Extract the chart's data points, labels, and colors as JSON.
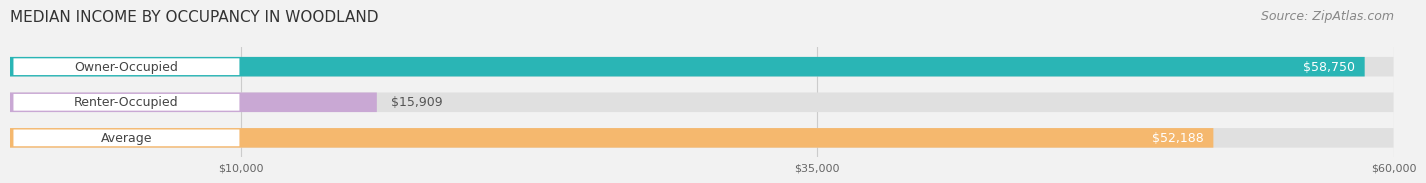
{
  "title": "MEDIAN INCOME BY OCCUPANCY IN WOODLAND",
  "source": "Source: ZipAtlas.com",
  "categories": [
    "Owner-Occupied",
    "Renter-Occupied",
    "Average"
  ],
  "values": [
    58750,
    15909,
    52188
  ],
  "bar_colors": [
    "#2ab5b5",
    "#c9a8d4",
    "#f5b86e"
  ],
  "value_labels": [
    "$58,750",
    "$15,909",
    "$52,188"
  ],
  "xlim": [
    0,
    60000
  ],
  "xticks": [
    10000,
    35000,
    60000
  ],
  "xtick_labels": [
    "$10,000",
    "$35,000",
    "$60,000"
  ],
  "background_color": "#f2f2f2",
  "title_fontsize": 11,
  "source_fontsize": 9,
  "bar_label_fontsize": 9,
  "value_fontsize": 9
}
